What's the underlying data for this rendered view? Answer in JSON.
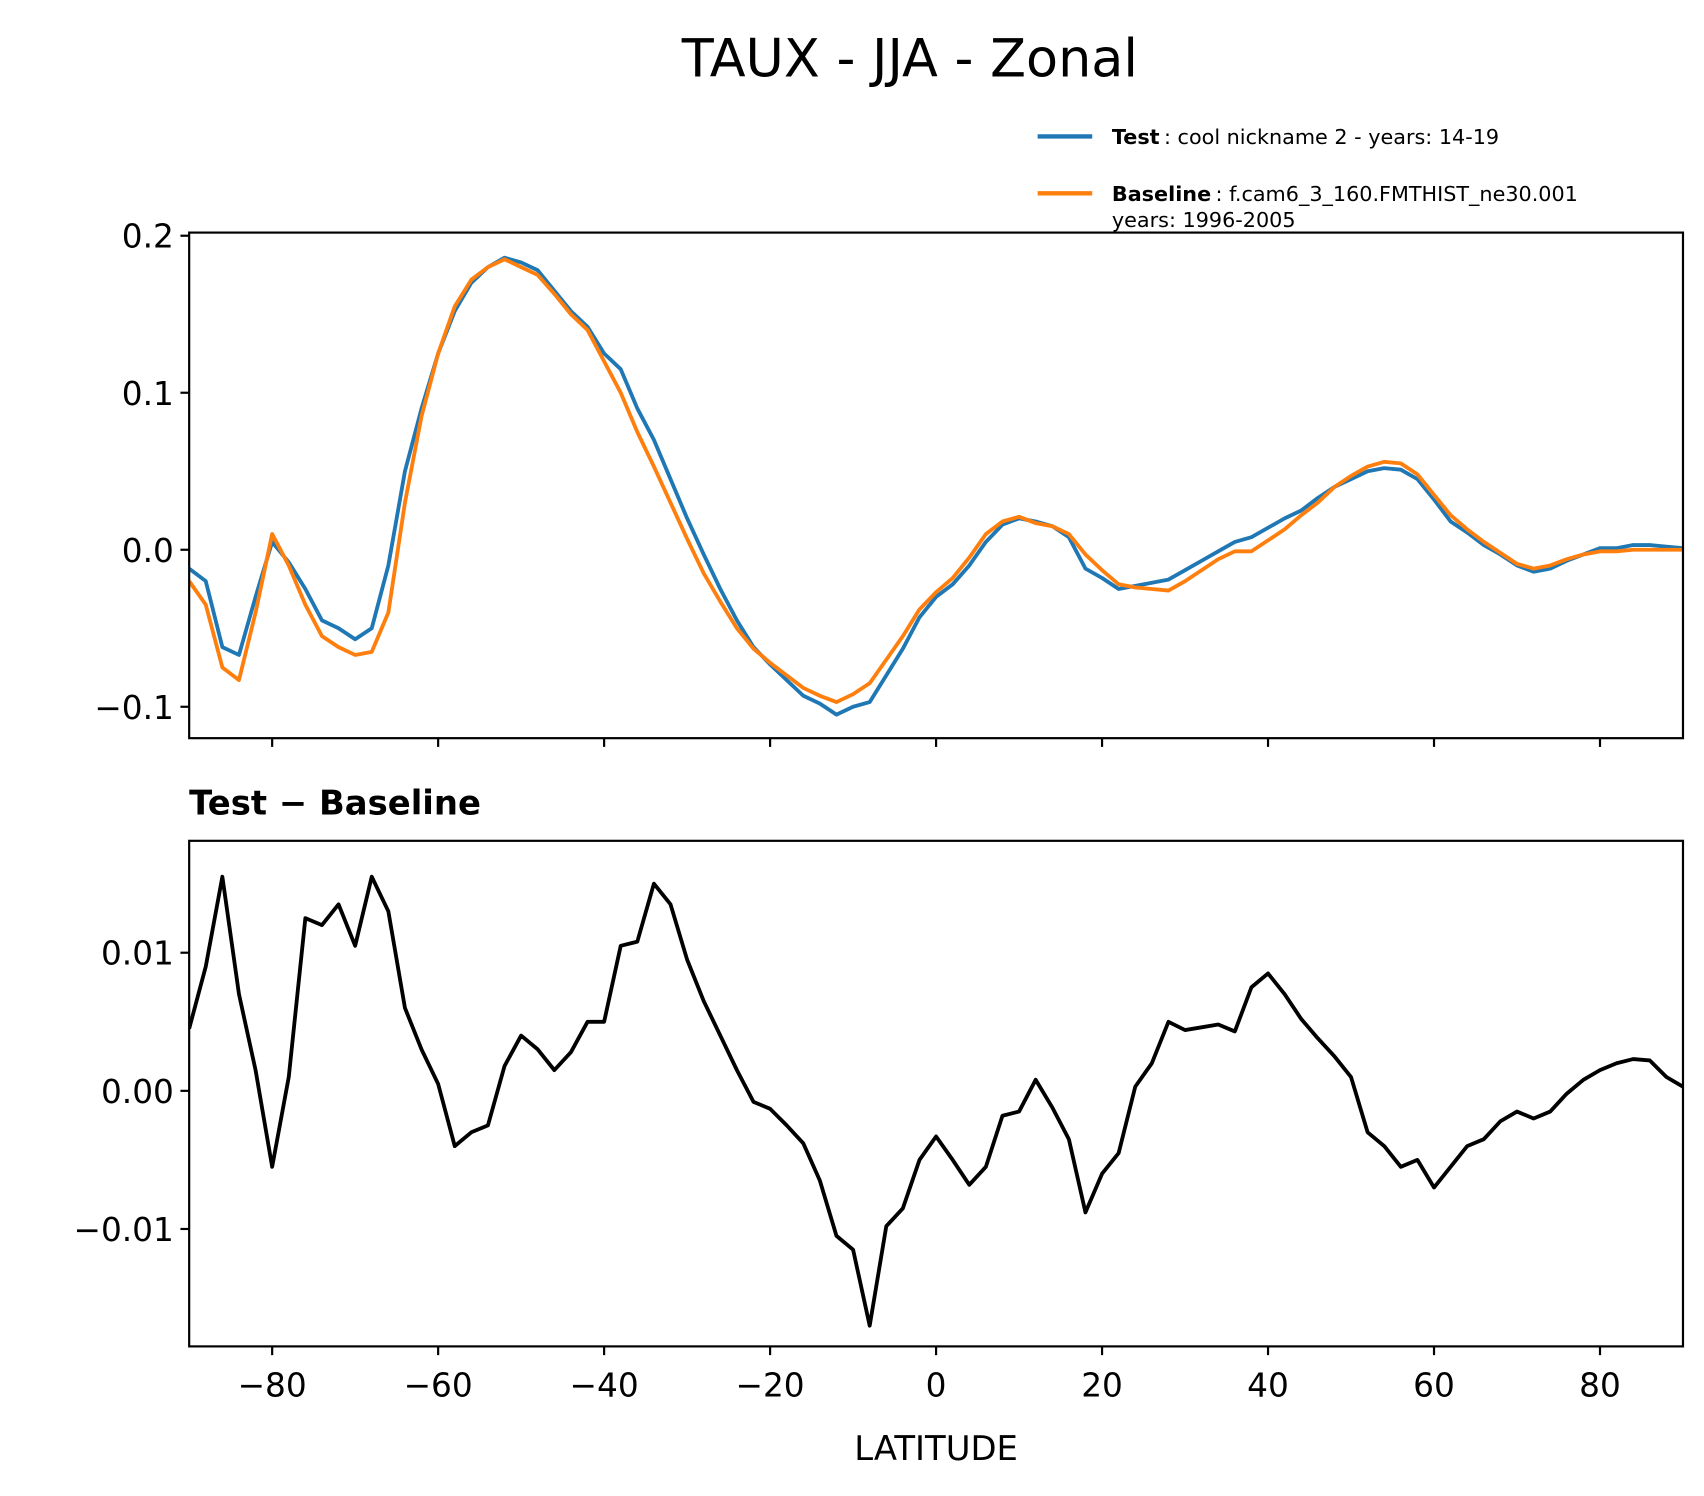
{
  "title": "TAUX - JJA - Zonal",
  "chart_data": [
    {
      "type": "line",
      "x": [
        -90,
        -88,
        -86,
        -84,
        -82,
        -80,
        -78,
        -76,
        -74,
        -72,
        -70,
        -68,
        -66,
        -64,
        -62,
        -60,
        -58,
        -56,
        -54,
        -52,
        -50,
        -48,
        -46,
        -44,
        -42,
        -40,
        -38,
        -36,
        -34,
        -32,
        -30,
        -28,
        -26,
        -24,
        -22,
        -20,
        -18,
        -16,
        -14,
        -12,
        -10,
        -8,
        -6,
        -4,
        -2,
        0,
        2,
        4,
        6,
        8,
        10,
        12,
        14,
        16,
        18,
        20,
        22,
        24,
        26,
        28,
        30,
        32,
        34,
        36,
        38,
        40,
        42,
        44,
        46,
        48,
        50,
        52,
        54,
        56,
        58,
        60,
        62,
        64,
        66,
        68,
        70,
        72,
        74,
        76,
        78,
        80,
        82,
        84,
        86,
        88,
        90
      ],
      "series": [
        {
          "name": "Test",
          "description": [
            ": cool nickname 2 - years: 14-19"
          ],
          "color": "#1f77b4",
          "values": [
            -0.012,
            -0.02,
            -0.062,
            -0.067,
            -0.03,
            0.005,
            -0.008,
            -0.025,
            -0.045,
            -0.05,
            -0.057,
            -0.05,
            -0.01,
            0.05,
            0.09,
            0.125,
            0.152,
            0.17,
            0.18,
            0.186,
            0.183,
            0.178,
            0.165,
            0.152,
            0.142,
            0.125,
            0.115,
            0.09,
            0.07,
            0.045,
            0.02,
            -0.003,
            -0.025,
            -0.045,
            -0.062,
            -0.073,
            -0.083,
            -0.093,
            -0.098,
            -0.105,
            -0.1,
            -0.097,
            -0.08,
            -0.063,
            -0.043,
            -0.03,
            -0.022,
            -0.01,
            0.005,
            0.016,
            0.02,
            0.018,
            0.015,
            0.008,
            -0.012,
            -0.018,
            -0.025,
            -0.023,
            -0.021,
            -0.019,
            -0.013,
            -0.007,
            -0.001,
            0.005,
            0.008,
            0.014,
            0.02,
            0.025,
            0.033,
            0.04,
            0.045,
            0.05,
            0.052,
            0.051,
            0.045,
            0.032,
            0.018,
            0.011,
            0.003,
            -0.003,
            -0.01,
            -0.014,
            -0.012,
            -0.007,
            -0.003,
            0.001,
            0.001,
            0.003,
            0.003,
            0.002,
            0.001
          ]
        },
        {
          "name": "Baseline",
          "description": [
            ": f.cam6_3_160.FMTHIST_ne30.001",
            "years: 1996-2005"
          ],
          "color": "#ff7f0e",
          "values": [
            -0.02,
            -0.035,
            -0.075,
            -0.083,
            -0.04,
            0.01,
            -0.01,
            -0.035,
            -0.055,
            -0.062,
            -0.067,
            -0.065,
            -0.04,
            0.03,
            0.085,
            0.125,
            0.155,
            0.172,
            0.18,
            0.185,
            0.18,
            0.175,
            0.163,
            0.15,
            0.14,
            0.12,
            0.1,
            0.075,
            0.053,
            0.03,
            0.007,
            -0.015,
            -0.033,
            -0.05,
            -0.063,
            -0.072,
            -0.08,
            -0.088,
            -0.093,
            -0.097,
            -0.092,
            -0.085,
            -0.07,
            -0.055,
            -0.038,
            -0.027,
            -0.018,
            -0.005,
            0.01,
            0.018,
            0.021,
            0.017,
            0.015,
            0.01,
            -0.003,
            -0.013,
            -0.022,
            -0.024,
            -0.025,
            -0.026,
            -0.02,
            -0.013,
            -0.006,
            -0.001,
            -0.001,
            0.006,
            0.013,
            0.022,
            0.03,
            0.04,
            0.047,
            0.053,
            0.056,
            0.055,
            0.048,
            0.035,
            0.022,
            0.013,
            0.005,
            -0.002,
            -0.009,
            -0.012,
            -0.01,
            -0.006,
            -0.003,
            -0.001,
            -0.001,
            0,
            0,
            0,
            0
          ]
        }
      ],
      "xlim": [
        -90,
        90
      ],
      "ylim": [
        -0.12,
        0.202
      ],
      "xticks": [
        -80,
        -60,
        -40,
        -20,
        0,
        20,
        40,
        60,
        80
      ],
      "yticks": [
        {
          "value": -0.1,
          "label": "−0.1"
        },
        {
          "value": 0,
          "label": "0.0"
        },
        0.1,
        0.2
      ],
      "legend": "upper right"
    },
    {
      "type": "line",
      "title": "Test − Baseline",
      "xlabel": "LATITUDE",
      "x": [
        -90,
        -88,
        -86,
        -84,
        -82,
        -80,
        -78,
        -76,
        -74,
        -72,
        -70,
        -68,
        -66,
        -64,
        -62,
        -60,
        -58,
        -56,
        -54,
        -52,
        -50,
        -48,
        -46,
        -44,
        -42,
        -40,
        -38,
        -36,
        -34,
        -32,
        -30,
        -28,
        -26,
        -24,
        -22,
        -20,
        -18,
        -16,
        -14,
        -12,
        -10,
        -8,
        -6,
        -4,
        -2,
        0,
        2,
        4,
        6,
        8,
        10,
        12,
        14,
        16,
        18,
        20,
        22,
        24,
        26,
        28,
        30,
        32,
        34,
        36,
        38,
        40,
        42,
        44,
        46,
        48,
        50,
        52,
        54,
        56,
        58,
        60,
        62,
        64,
        66,
        68,
        70,
        72,
        74,
        76,
        78,
        80,
        82,
        84,
        86,
        88,
        90
      ],
      "color": "#000000",
      "values": [
        0.0045,
        0.009,
        0.0155,
        0.007,
        0.0015,
        -0.0055,
        0.001,
        0.0125,
        0.012,
        0.0135,
        0.0105,
        0.0155,
        0.013,
        0.006,
        0.003,
        0.0005,
        -0.004,
        -0.003,
        -0.0025,
        0.0018,
        0.004,
        0.003,
        0.0015,
        0.0028,
        0.005,
        0.005,
        0.0105,
        0.0108,
        0.015,
        0.0135,
        0.0095,
        0.0065,
        0.004,
        0.0015,
        -0.0008,
        -0.0013,
        -0.0025,
        -0.0038,
        -0.0065,
        -0.0105,
        -0.0115,
        -0.017,
        -0.0098,
        -0.0085,
        -0.005,
        -0.0033,
        -0.005,
        -0.0068,
        -0.0055,
        -0.0018,
        -0.0015,
        0.0008,
        -0.0012,
        -0.0035,
        -0.0088,
        -0.006,
        -0.0045,
        0.0003,
        0.002,
        0.005,
        0.0044,
        0.0046,
        0.0048,
        0.0043,
        0.0075,
        0.0085,
        0.007,
        0.0052,
        0.0038,
        0.0025,
        0.001,
        -0.003,
        -0.004,
        -0.0055,
        -0.005,
        -0.007,
        -0.0055,
        -0.004,
        -0.0035,
        -0.0022,
        -0.0015,
        -0.002,
        -0.0015,
        -0.0002,
        0.0008,
        0.0015,
        0.002,
        0.0023,
        0.0022,
        0.001,
        0.0003
      ],
      "xlim": [
        -90,
        90
      ],
      "ylim": [
        -0.0185,
        0.0181
      ],
      "xticks": [
        {
          "value": -80,
          "label": "−80"
        },
        {
          "value": -60,
          "label": "−60"
        },
        {
          "value": -40,
          "label": "−40"
        },
        {
          "value": -20,
          "label": "−20"
        },
        0,
        20,
        40,
        60,
        80
      ],
      "yticks": [
        {
          "value": -0.01,
          "label": "−0.01"
        },
        {
          "value": 0,
          "label": "0.00"
        },
        0.01
      ]
    }
  ]
}
